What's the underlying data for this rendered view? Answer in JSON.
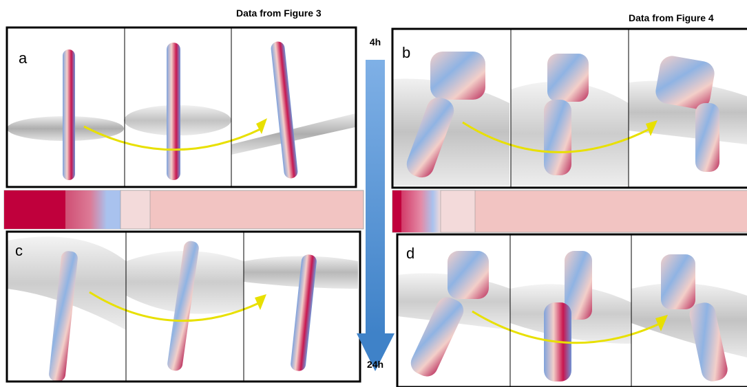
{
  "figure": {
    "left_title": "Data from Figure 3",
    "right_title": "Data from Figure 4",
    "time_start": "4h",
    "time_end": "24h",
    "panels": [
      {
        "label": "a"
      },
      {
        "label": "b"
      },
      {
        "label": "c"
      },
      {
        "label": "d"
      }
    ]
  }
}
